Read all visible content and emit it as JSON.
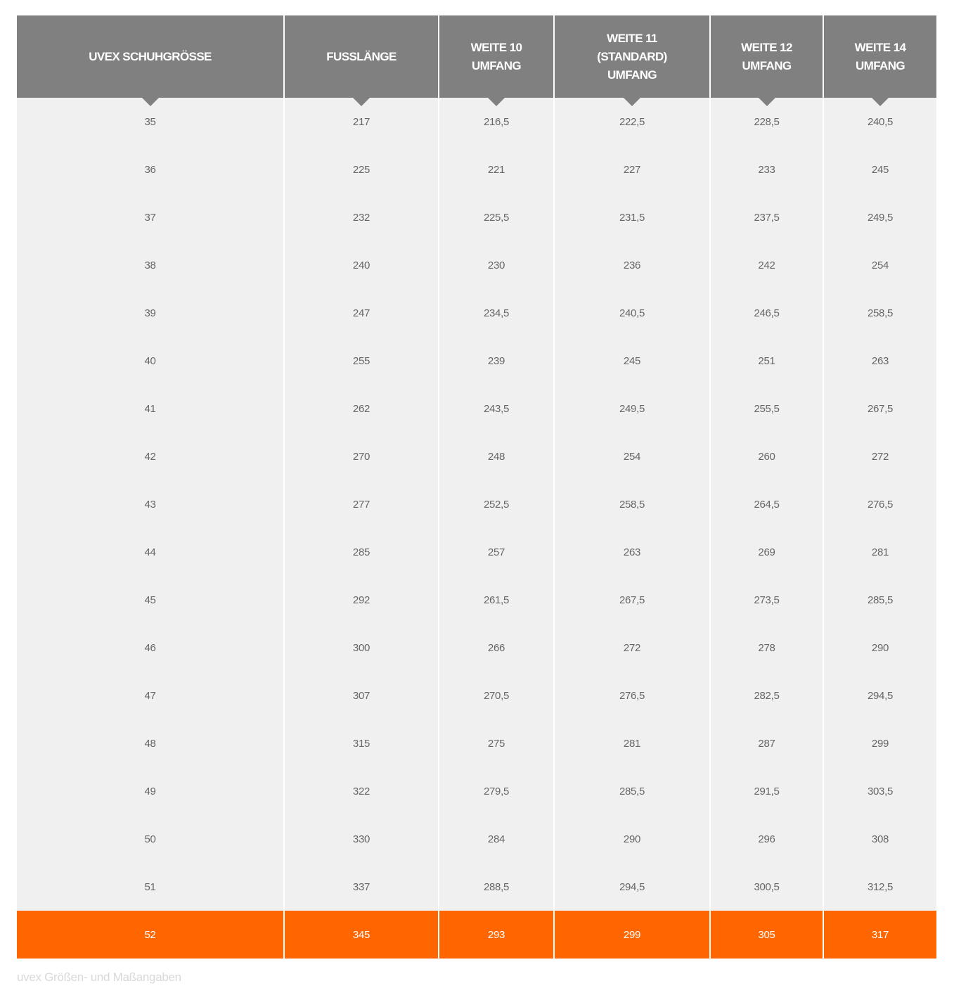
{
  "table": {
    "headers": [
      [
        "UVEX SCHUHGRÖSSE"
      ],
      [
        "FUSSLÄNGE"
      ],
      [
        "WEITE 10",
        "UMFANG"
      ],
      [
        "WEITE 11",
        "(STANDARD)",
        "UMFANG"
      ],
      [
        "WEITE 12",
        "UMFANG"
      ],
      [
        "WEITE 14",
        "UMFANG"
      ]
    ],
    "rows": [
      [
        "35",
        "217",
        "216,5",
        "222,5",
        "228,5",
        "240,5"
      ],
      [
        "36",
        "225",
        "221",
        "227",
        "233",
        "245"
      ],
      [
        "37",
        "232",
        "225,5",
        "231,5",
        "237,5",
        "249,5"
      ],
      [
        "38",
        "240",
        "230",
        "236",
        "242",
        "254"
      ],
      [
        "39",
        "247",
        "234,5",
        "240,5",
        "246,5",
        "258,5"
      ],
      [
        "40",
        "255",
        "239",
        "245",
        "251",
        "263"
      ],
      [
        "41",
        "262",
        "243,5",
        "249,5",
        "255,5",
        "267,5"
      ],
      [
        "42",
        "270",
        "248",
        "254",
        "260",
        "272"
      ],
      [
        "43",
        "277",
        "252,5",
        "258,5",
        "264,5",
        "276,5"
      ],
      [
        "44",
        "285",
        "257",
        "263",
        "269",
        "281"
      ],
      [
        "45",
        "292",
        "261,5",
        "267,5",
        "273,5",
        "285,5"
      ],
      [
        "46",
        "300",
        "266",
        "272",
        "278",
        "290"
      ],
      [
        "47",
        "307",
        "270,5",
        "276,5",
        "282,5",
        "294,5"
      ],
      [
        "48",
        "315",
        "275",
        "281",
        "287",
        "299"
      ],
      [
        "49",
        "322",
        "279,5",
        "285,5",
        "291,5",
        "303,5"
      ],
      [
        "50",
        "330",
        "284",
        "290",
        "296",
        "308"
      ],
      [
        "51",
        "337",
        "288,5",
        "294,5",
        "300,5",
        "312,5"
      ],
      [
        "52",
        "345",
        "293",
        "299",
        "305",
        "317"
      ]
    ],
    "highlighted_row_index": 17
  },
  "caption": "uvex Größen- und Maßangaben",
  "colors": {
    "header_bg": "#808080",
    "row_bg": "#f0f0f0",
    "highlight": "#ff6600",
    "text": "#666666"
  }
}
